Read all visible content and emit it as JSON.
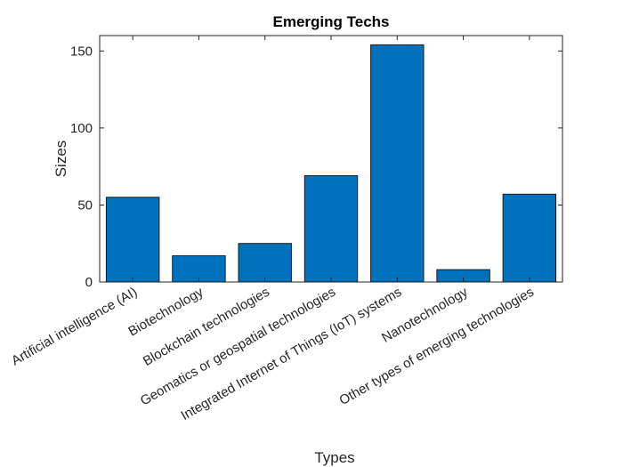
{
  "chart_data": {
    "type": "bar",
    "title": "Emerging Techs",
    "xlabel": "Types",
    "ylabel": "Sizes",
    "categories": [
      "Artificial intelligence (AI)",
      "Biotechnology",
      "Blockchain technologies",
      "Geomatics or geospatial technologies",
      "Integrated Internet of Things (IoT) systems",
      "Nanotechnology",
      "Other types of emerging technologies"
    ],
    "values": [
      55,
      17,
      25,
      69,
      154,
      8,
      57
    ],
    "ylim": [
      0,
      160
    ],
    "yticks": [
      0,
      50,
      100,
      150
    ],
    "bar_color": "#0072BD",
    "grid": false,
    "legend": "none"
  }
}
